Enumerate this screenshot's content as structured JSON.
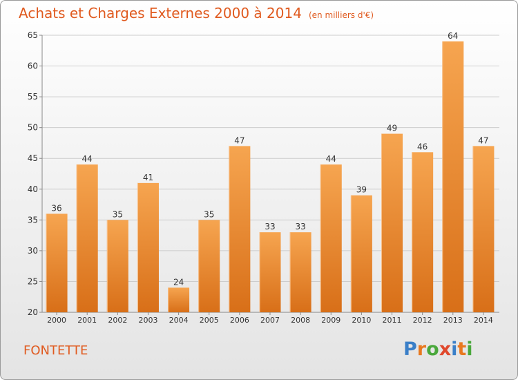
{
  "header": {
    "title": "Achats et Charges Externes 2000 à 2014",
    "subtitle": "(en milliers d'€)"
  },
  "footer": {
    "commune": "FONTETTE",
    "logo_text": "Proxiti",
    "logo_colors": [
      "#3a7fc8",
      "#e8781f",
      "#4aa83c",
      "#e0482c",
      "#3a7fc8",
      "#e8781f",
      "#4aa83c"
    ]
  },
  "colors": {
    "accent": "#e05a1f",
    "bar_top": "#f6a550",
    "bar_bottom": "#d86f18",
    "grid": "#cccccc"
  },
  "chart_data": {
    "type": "bar",
    "categories": [
      "2000",
      "2001",
      "2002",
      "2003",
      "2004",
      "2005",
      "2006",
      "2007",
      "2008",
      "2009",
      "2010",
      "2011",
      "2012",
      "2013",
      "2014"
    ],
    "values": [
      36,
      44,
      35,
      41,
      24,
      35,
      47,
      33,
      33,
      44,
      39,
      49,
      46,
      64,
      47
    ],
    "ylim": [
      20,
      65
    ],
    "yticks": [
      20,
      25,
      30,
      35,
      40,
      45,
      50,
      55,
      60,
      65
    ],
    "grid": true
  }
}
